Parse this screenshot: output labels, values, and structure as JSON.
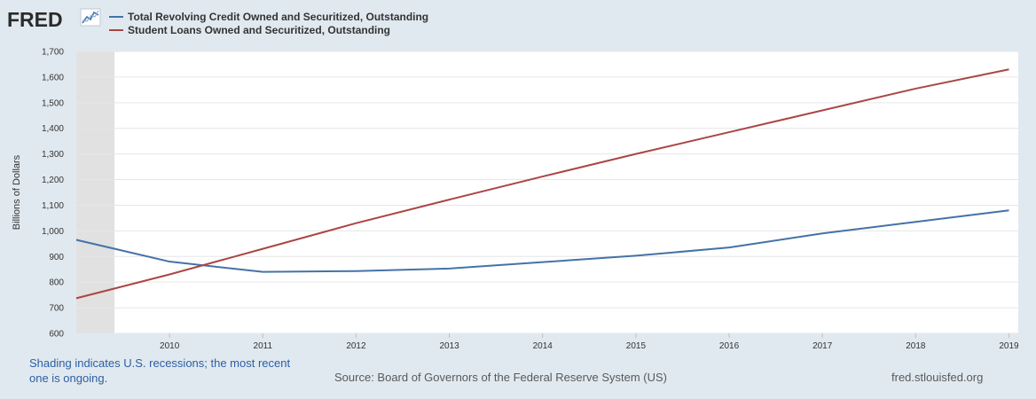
{
  "brand": {
    "name": "FRED"
  },
  "footer": {
    "note": "Shading indicates U.S. recessions; the most recent one is ongoing.",
    "source": "Source: Board of Governors of the Federal Reserve System (US)",
    "site": "fred.stlouisfed.org"
  },
  "chart_data": {
    "type": "line",
    "title": "",
    "xlabel": "",
    "ylabel": "Billions of Dollars",
    "x": [
      2009.0,
      2010.0,
      2011.0,
      2012.0,
      2013.0,
      2014.0,
      2015.0,
      2016.0,
      2017.0,
      2018.0,
      2019.0
    ],
    "x_ticks": [
      "2010",
      "2011",
      "2012",
      "2013",
      "2014",
      "2015",
      "2016",
      "2017",
      "2018",
      "2019"
    ],
    "y_ticks": [
      "600",
      "700",
      "800",
      "900",
      "1,000",
      "1,100",
      "1,200",
      "1,300",
      "1,400",
      "1,500",
      "1,600",
      "1,700"
    ],
    "xlim": [
      2009.0,
      2019.1
    ],
    "ylim": [
      600,
      1700
    ],
    "grid": true,
    "legend_position": "top-left",
    "recession_shading": [
      [
        2009.0,
        2009.41
      ]
    ],
    "series": [
      {
        "name": "Total Revolving Credit Owned and Securitized, Outstanding",
        "color": "#4572a7",
        "values": [
          965,
          880,
          840,
          843,
          853,
          878,
          903,
          935,
          990,
          1035,
          1080
        ]
      },
      {
        "name": "Student Loans Owned and Securitized, Outstanding",
        "color": "#aa4643",
        "values": [
          737,
          830,
          930,
          1030,
          1122,
          1212,
          1300,
          1385,
          1470,
          1555,
          1630
        ]
      }
    ]
  }
}
